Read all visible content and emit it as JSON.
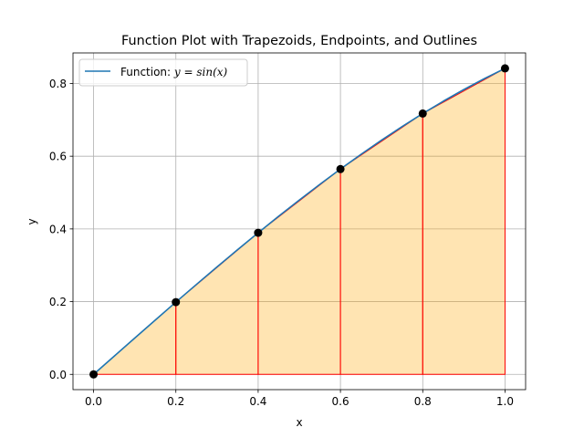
{
  "chart_data": {
    "type": "area",
    "title": "Function Plot with Trapezoids, Endpoints, and Outlines",
    "xlabel": "x",
    "ylabel": "y",
    "xlim": [
      -0.05,
      1.05
    ],
    "ylim": [
      -0.042,
      0.884
    ],
    "grid": true,
    "legend_placement": "top-left",
    "x_ticks": [
      0.0,
      0.2,
      0.4,
      0.6,
      0.8,
      1.0
    ],
    "x_tick_labels": [
      "0.0",
      "0.2",
      "0.4",
      "0.6",
      "0.8",
      "1.0"
    ],
    "y_ticks": [
      0.0,
      0.2,
      0.4,
      0.6,
      0.8
    ],
    "y_tick_labels": [
      "0.0",
      "0.2",
      "0.4",
      "0.6",
      "0.8"
    ],
    "legend": {
      "prefix": "Function: ",
      "math": "y = sin(x)"
    },
    "series": [
      {
        "name": "Function: y = sin(x)",
        "kind": "line",
        "color": "#1f77b4",
        "x": [
          0.0,
          0.05,
          0.1,
          0.15,
          0.2,
          0.25,
          0.3,
          0.35,
          0.4,
          0.45,
          0.5,
          0.55,
          0.6,
          0.65,
          0.7,
          0.75,
          0.8,
          0.85,
          0.9,
          0.95,
          1.0
        ],
        "y": [
          0.0,
          0.05,
          0.0998,
          0.1494,
          0.1987,
          0.2474,
          0.2955,
          0.3429,
          0.3894,
          0.435,
          0.4794,
          0.5227,
          0.5646,
          0.6052,
          0.6442,
          0.6816,
          0.7174,
          0.7513,
          0.7833,
          0.8134,
          0.8415
        ]
      },
      {
        "kind": "trapezoids",
        "fill_color": "#ffa500",
        "fill_opacity": 0.3,
        "edge_color": "#ff0000",
        "x": [
          0.0,
          0.2,
          0.4,
          0.6,
          0.8,
          1.0
        ],
        "y": [
          0.0,
          0.1987,
          0.3894,
          0.5646,
          0.7174,
          0.8415
        ]
      },
      {
        "kind": "points",
        "color": "#000000",
        "x": [
          0.0,
          0.2,
          0.4,
          0.6,
          0.8,
          1.0
        ],
        "y": [
          0.0,
          0.1987,
          0.3894,
          0.5646,
          0.7174,
          0.8415
        ]
      }
    ]
  }
}
